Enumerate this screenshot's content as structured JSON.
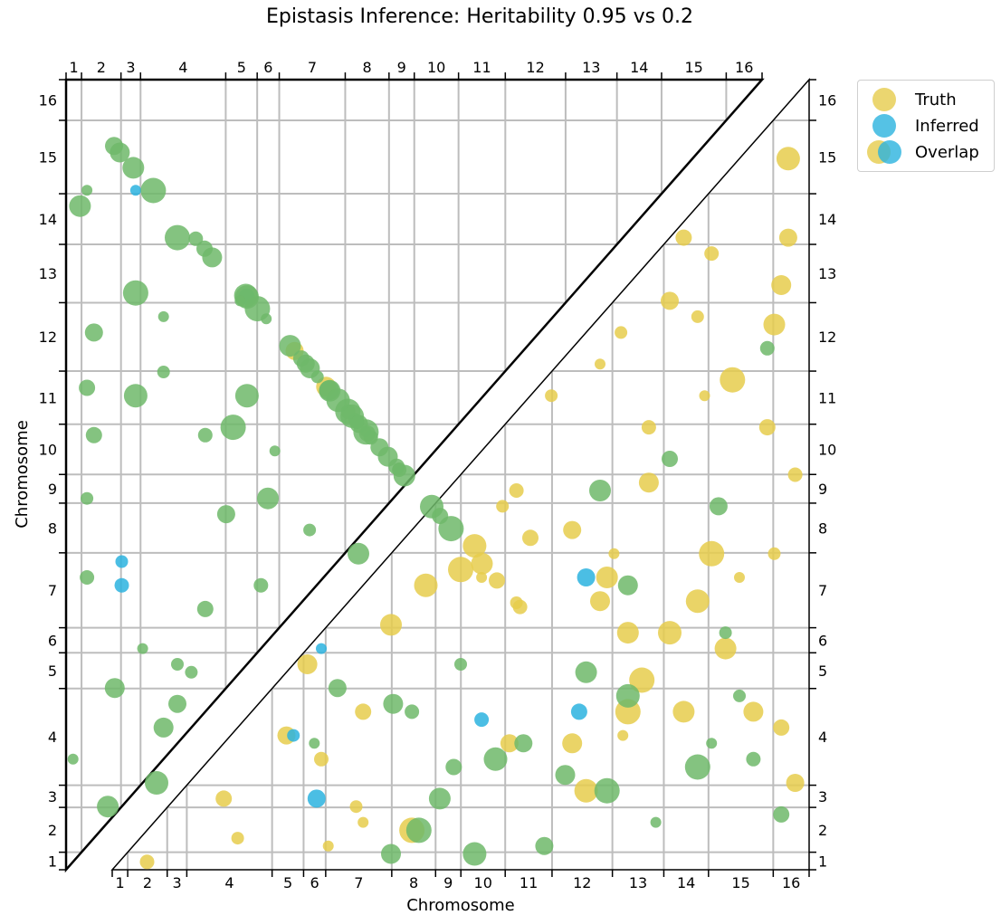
{
  "title": "Epistasis Inference: Heritability 0.95 vs 0.2",
  "colors": {
    "truth": "#e6cc4c",
    "inferred": "#2bb3df",
    "overlap": "#6fb86a",
    "grid": "#bdbdbd"
  },
  "legend": {
    "truth": "Truth",
    "inferred": "Inferred",
    "overlap": "Overlap"
  },
  "chart_data": {
    "type": "scatter",
    "title": "Epistasis Inference: Heritability 0.95 vs 0.2",
    "xlabel": "Chromosome",
    "ylabel": "Chromosome",
    "grid": true,
    "legend_position": "outside-top-right",
    "chromosomes": [
      "1",
      "2",
      "3",
      "4",
      "5",
      "6",
      "7",
      "8",
      "9",
      "10",
      "11",
      "12",
      "13",
      "14",
      "15",
      "16"
    ],
    "chromosome_fraction_bounds": [
      0,
      0.0222,
      0.0789,
      0.107,
      0.2294,
      0.2746,
      0.3063,
      0.4011,
      0.464,
      0.5003,
      0.5639,
      0.6311,
      0.7177,
      0.7915,
      0.8556,
      0.9485,
      1
    ],
    "panels": [
      {
        "name": "upper-left",
        "description_in_image": "Heritability 0.95"
      },
      {
        "name": "lower-right",
        "description_in_image": "Heritability 0.2"
      }
    ],
    "series": [
      {
        "name": "Truth",
        "panel": "upper-left",
        "points": [
          [
            0.8,
            0.17
          ],
          [
            0.9,
            0.47
          ],
          [
            1.0,
            0.51
          ],
          [
            0.93,
            0.55
          ],
          [
            0.36,
            0.72
          ],
          [
            0.55,
            0.9
          ],
          [
            0.91,
            0.59
          ]
        ]
      },
      {
        "name": "Inferred",
        "panel": "upper-left",
        "points": [
          [
            0.1,
            0.86
          ],
          [
            0.08,
            0.39
          ],
          [
            0.08,
            0.36
          ],
          [
            0.34,
            0.95
          ],
          [
            0.36,
            0.09
          ]
        ]
      },
      {
        "name": "Overlap",
        "panel": "upper-left",
        "points": [
          [
            0.01,
            0.14
          ],
          [
            0.03,
            0.47
          ],
          [
            0.03,
            0.37
          ],
          [
            0.03,
            0.61
          ],
          [
            0.07,
            0.93
          ],
          [
            0.08,
            0.94
          ],
          [
            0.1,
            0.92
          ],
          [
            0.13,
            0.11
          ],
          [
            0.14,
            0.96
          ],
          [
            0.11,
            0.28
          ],
          [
            0.16,
            0.26
          ],
          [
            0.21,
            0.9
          ],
          [
            0.2,
            0.79
          ],
          [
            0.23,
            0.45
          ],
          [
            0.26,
            0.96
          ],
          [
            0.29,
            0.47
          ],
          [
            0.33,
            0.92
          ],
          [
            0.36,
            0.93
          ],
          [
            0.4,
            0.97
          ],
          [
            0.44,
            0.76
          ],
          [
            0.45,
            0.61
          ],
          [
            0.47,
            0.9
          ],
          [
            0.5,
            0.93
          ],
          [
            0.53,
            0.96
          ],
          [
            0.55,
            0.88
          ],
          [
            0.58,
            0.81
          ],
          [
            0.6,
            0.86
          ],
          [
            0.63,
            0.81
          ],
          [
            0.64,
            0.88
          ],
          [
            0.65,
            0.93
          ],
          [
            0.6,
            0.5
          ],
          [
            0.44,
            0.59
          ],
          [
            0.38,
            0.61
          ],
          [
            0.33,
            0.68
          ],
          [
            0.26,
            0.6
          ],
          [
            0.16,
            0.8
          ],
          [
            0.14,
            0.7
          ],
          [
            0.14,
            0.63
          ],
          [
            0.2,
            0.55
          ],
          [
            0.04,
            0.55
          ],
          [
            0.04,
            0.68
          ],
          [
            0.07,
            0.23
          ],
          [
            0.02,
            0.84
          ],
          [
            0.27,
            0.76
          ],
          [
            0.24,
            0.56
          ],
          [
            0.3,
            0.53
          ],
          [
            0.35,
            0.43
          ],
          [
            0.28,
            0.36
          ],
          [
            0.2,
            0.33
          ],
          [
            0.16,
            0.21
          ],
          [
            0.14,
            0.18
          ],
          [
            0.06,
            0.08
          ],
          [
            0.5,
            0.76
          ],
          [
            0.56,
            0.72
          ],
          [
            0.62,
            0.66
          ],
          [
            0.68,
            0.92
          ],
          [
            0.72,
            0.9
          ],
          [
            0.76,
            0.97
          ],
          [
            0.8,
            0.95
          ],
          [
            0.84,
            0.95
          ],
          [
            0.76,
            0.78
          ],
          [
            0.8,
            0.7
          ],
          [
            0.82,
            0.64
          ],
          [
            0.25,
            0.72
          ],
          [
            0.18,
            0.25
          ],
          [
            0.52,
            0.55
          ],
          [
            0.54,
            0.58
          ],
          [
            0.39,
            0.23
          ],
          [
            0.47,
            0.21
          ],
          [
            0.42,
            0.4
          ],
          [
            0.1,
            0.6
          ],
          [
            0.1,
            0.73
          ],
          [
            0.03,
            0.86
          ]
        ]
      },
      {
        "name": "Truth",
        "panel": "lower-right",
        "points": [
          [
            0.31,
            0.03
          ],
          [
            0.35,
            0.08
          ],
          [
            0.3,
            0.14
          ],
          [
            0.36,
            0.2
          ],
          [
            0.25,
            0.17
          ],
          [
            0.28,
            0.26
          ],
          [
            0.4,
            0.31
          ],
          [
            0.45,
            0.36
          ],
          [
            0.5,
            0.38
          ],
          [
            0.53,
            0.37
          ],
          [
            0.56,
            0.46
          ],
          [
            0.58,
            0.48
          ],
          [
            0.6,
            0.42
          ],
          [
            0.66,
            0.43
          ],
          [
            0.7,
            0.34
          ],
          [
            0.74,
            0.3
          ],
          [
            0.8,
            0.3
          ],
          [
            0.86,
            0.4
          ],
          [
            0.9,
            0.37
          ],
          [
            0.95,
            0.4
          ],
          [
            0.98,
            0.5
          ],
          [
            0.94,
            0.56
          ],
          [
            0.97,
            0.8
          ],
          [
            0.96,
            0.74
          ],
          [
            0.95,
            0.69
          ],
          [
            0.97,
            0.9
          ],
          [
            0.89,
            0.62
          ],
          [
            0.85,
            0.6
          ],
          [
            0.84,
            0.7
          ],
          [
            0.86,
            0.78
          ],
          [
            0.82,
            0.8
          ],
          [
            0.8,
            0.72
          ],
          [
            0.77,
            0.49
          ],
          [
            0.71,
            0.37
          ],
          [
            0.52,
            0.41
          ],
          [
            0.43,
            0.05
          ],
          [
            0.36,
            0.06
          ],
          [
            0.18,
            0.04
          ],
          [
            0.05,
            0.01
          ],
          [
            0.16,
            0.09
          ],
          [
            0.57,
            0.16
          ],
          [
            0.66,
            0.16
          ],
          [
            0.82,
            0.2
          ],
          [
            0.68,
            0.1
          ],
          [
            0.76,
            0.24
          ],
          [
            0.72,
            0.4
          ],
          [
            0.63,
            0.6
          ],
          [
            0.77,
            0.56
          ],
          [
            0.96,
            0.18
          ],
          [
            0.98,
            0.11
          ],
          [
            0.92,
            0.2
          ],
          [
            0.88,
            0.28
          ],
          [
            0.84,
            0.34
          ],
          [
            0.74,
            0.2
          ],
          [
            0.7,
            0.64
          ],
          [
            0.73,
            0.68
          ]
        ]
      },
      {
        "name": "Inferred",
        "panel": "lower-right",
        "points": [
          [
            0.3,
            0.3
          ],
          [
            0.26,
            0.17
          ],
          [
            0.53,
            0.19
          ],
          [
            0.67,
            0.2
          ],
          [
            0.68,
            0.37
          ]
        ]
      },
      {
        "name": "Overlap",
        "panel": "lower-right",
        "points": [
          [
            0.29,
            0.16
          ],
          [
            0.5,
            0.26
          ],
          [
            0.43,
            0.2
          ],
          [
            0.49,
            0.13
          ],
          [
            0.59,
            0.16
          ],
          [
            0.65,
            0.12
          ],
          [
            0.68,
            0.25
          ],
          [
            0.74,
            0.22
          ],
          [
            0.84,
            0.13
          ],
          [
            0.86,
            0.16
          ],
          [
            0.9,
            0.22
          ],
          [
            0.92,
            0.14
          ],
          [
            0.96,
            0.07
          ],
          [
            0.62,
            0.03
          ],
          [
            0.4,
            0.02
          ],
          [
            0.47,
            0.09
          ],
          [
            0.55,
            0.14
          ],
          [
            0.71,
            0.1
          ],
          [
            0.78,
            0.06
          ],
          [
            0.88,
            0.3
          ],
          [
            0.94,
            0.66
          ],
          [
            0.8,
            0.52
          ],
          [
            0.87,
            0.46
          ],
          [
            0.74,
            0.36
          ],
          [
            0.7,
            0.48
          ],
          [
            0.52,
            0.02
          ],
          [
            0.44,
            0.05
          ]
        ]
      }
    ]
  }
}
